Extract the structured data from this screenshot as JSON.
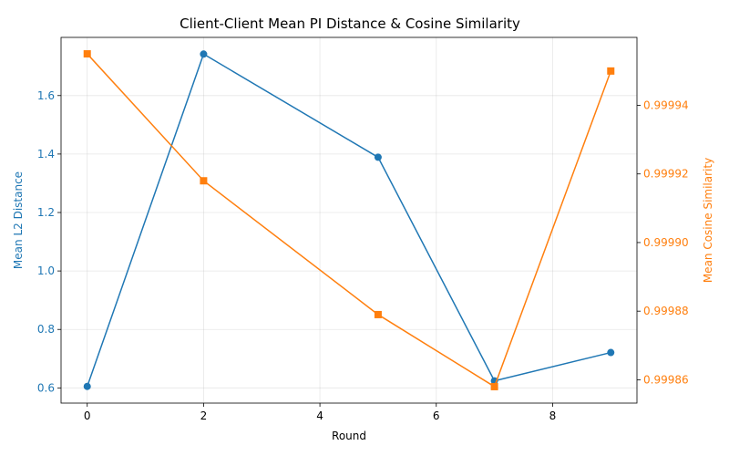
{
  "chart_data": {
    "type": "line",
    "title": "Client-Client Mean PI Distance & Cosine Similarity",
    "xlabel": "Round",
    "x": [
      0,
      2,
      5,
      7,
      9
    ],
    "xlim": [
      -0.45,
      9.45
    ],
    "xticks": [
      0,
      2,
      4,
      6,
      8
    ],
    "xtick_labels": [
      "0",
      "2",
      "4",
      "6",
      "8"
    ],
    "grid": true,
    "series": [
      {
        "axis": "left",
        "ylabel": "Mean L2 Distance",
        "color": "#1f77b4",
        "marker": "circle",
        "values": [
          0.605,
          1.742,
          1.389,
          0.624,
          0.721
        ],
        "ylim": [
          0.548,
          1.799
        ],
        "yticks": [
          0.6,
          0.8,
          1.0,
          1.2,
          1.4,
          1.6
        ],
        "ytick_labels": [
          "0.6",
          "0.8",
          "1.0",
          "1.2",
          "1.4",
          "1.6"
        ]
      },
      {
        "axis": "right",
        "ylabel": "Mean Cosine Similarity",
        "color": "#ff7f0e",
        "marker": "square",
        "values": [
          0.999955,
          0.999918,
          0.999879,
          0.999858,
          0.99995
        ],
        "ylim": [
          0.9998532,
          0.9999598
        ],
        "yticks": [
          0.99986,
          0.99988,
          0.9999,
          0.99992,
          0.99994
        ],
        "ytick_labels": [
          "0.99986",
          "0.99988",
          "0.99990",
          "0.99992",
          "0.99994"
        ]
      }
    ]
  }
}
